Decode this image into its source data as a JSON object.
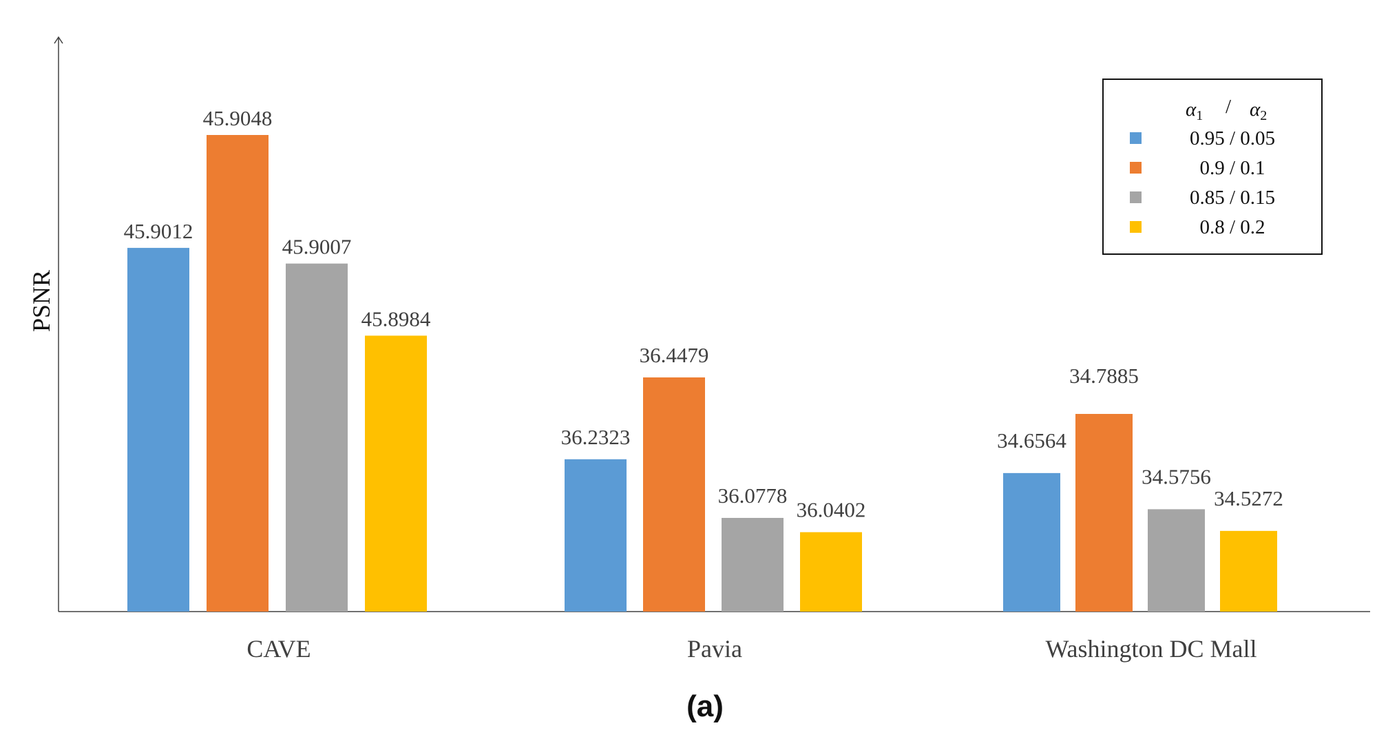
{
  "chart_data": {
    "type": "bar",
    "title": "",
    "xlabel": "",
    "ylabel": "PSNR",
    "categories": [
      "CAVE",
      "Pavia",
      "Washington DC Mall"
    ],
    "legend_header": {
      "a1": "α",
      "a1_sub": "1",
      "sep": "/",
      "a2": "α",
      "a2_sub": "2"
    },
    "series": [
      {
        "name": "0.95 / 0.05",
        "color": "#5B9BD5",
        "values": [
          45.9012,
          36.2323,
          34.6564
        ]
      },
      {
        "name": "0.9 / 0.1",
        "color": "#ED7D31",
        "values": [
          45.9048,
          36.4479,
          34.7885
        ]
      },
      {
        "name": "0.85 / 0.15",
        "color": "#A5A5A5",
        "values": [
          45.9007,
          36.0778,
          34.5756
        ]
      },
      {
        "name": "0.8 / 0.2",
        "color": "#FFC000",
        "values": [
          45.8984,
          36.0402,
          34.5272
        ]
      }
    ],
    "legend_position": "top-right",
    "grid": false,
    "caption_letter": "a",
    "caption": "(a)"
  }
}
